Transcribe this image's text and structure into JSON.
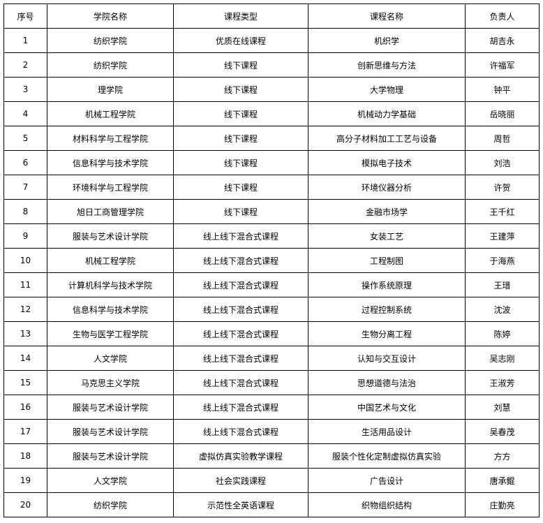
{
  "headers": [
    "序号",
    "学院名称",
    "课程类型",
    "课程名称",
    "负责人"
  ],
  "rows": [
    [
      "1",
      "纺织学院",
      "优质在线课程",
      "机织学",
      "胡吉永"
    ],
    [
      "2",
      "纺织学院",
      "线下课程",
      "创新思维与方法",
      "许福军"
    ],
    [
      "3",
      "理学院",
      "线下课程",
      "大学物理",
      "钟平"
    ],
    [
      "4",
      "机械工程学院",
      "线下课程",
      "机械动力学基础",
      "岳晓丽"
    ],
    [
      "5",
      "材料科学与工程学院",
      "线下课程",
      "高分子材料加工工艺与设备",
      "周哲"
    ],
    [
      "6",
      "信息科学与技术学院",
      "线下课程",
      "模拟电子技术",
      "刘浩"
    ],
    [
      "7",
      "环境科学与工程学院",
      "线下课程",
      "环境仪器分析",
      "许贺"
    ],
    [
      "8",
      "旭日工商管理学院",
      "线下课程",
      "金融市场学",
      "王千红"
    ],
    [
      "9",
      "服装与艺术设计学院",
      "线上线下混合式课程",
      "女装工艺",
      "王建萍"
    ],
    [
      "10",
      "机械工程学院",
      "线上线下混合式课程",
      "工程制图",
      "于海燕"
    ],
    [
      "11",
      "计算机科学与技术学院",
      "线上线下混合式课程",
      "操作系统原理",
      "王瑨"
    ],
    [
      "12",
      "信息科学与技术学院",
      "线上线下混合式课程",
      "过程控制系统",
      "沈波"
    ],
    [
      "13",
      "生物与医学工程学院",
      "线上线下混合式课程",
      "生物分离工程",
      "陈婷"
    ],
    [
      "14",
      "人文学院",
      "线上线下混合式课程",
      "认知与交互设计",
      "吴志刚"
    ],
    [
      "15",
      "马克思主义学院",
      "线上线下混合式课程",
      "思想道德与法治",
      "王淑芳"
    ],
    [
      "16",
      "服装与艺术设计学院",
      "线上线下混合式课程",
      "中国艺术与文化",
      "刘慧"
    ],
    [
      "17",
      "服装与艺术设计学院",
      "线上线下混合式课程",
      "生活用品设计",
      "吴春茂"
    ],
    [
      "18",
      "服装与艺术设计学院",
      "虚拟仿真实验教学课程",
      "服装个性化定制虚拟仿真实验",
      "方方"
    ],
    [
      "19",
      "人文学院",
      "社会实践课程",
      "广告设计",
      "唐承鲲"
    ],
    [
      "20",
      "纺织学院",
      "示范性全英语课程",
      "织物组织结构",
      "庄勤亮"
    ]
  ]
}
